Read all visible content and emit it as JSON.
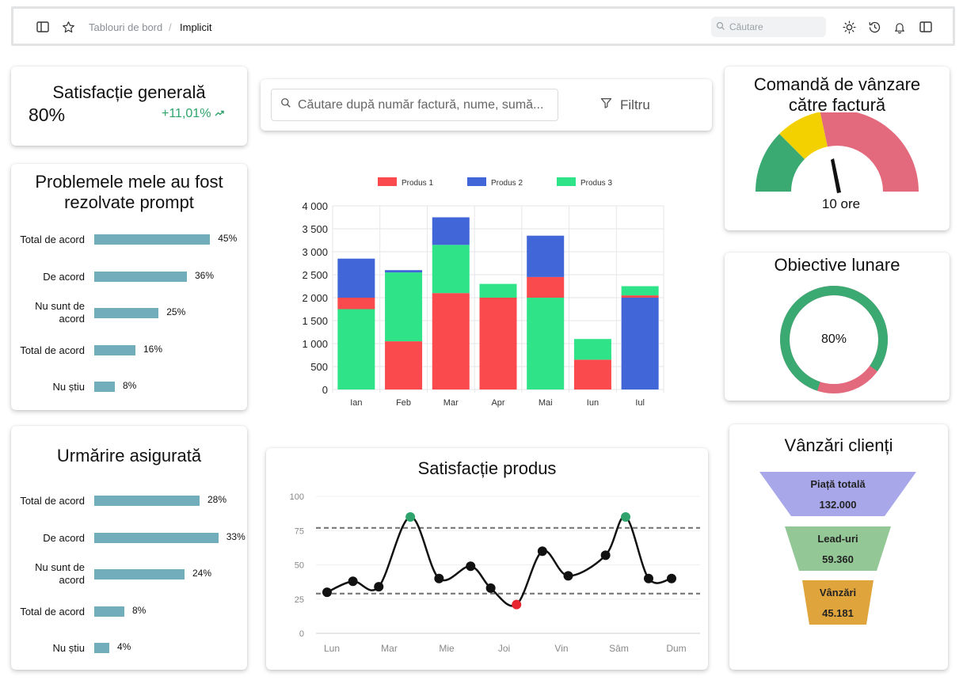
{
  "header": {
    "breadcrumb_parent": "Tablouri de bord",
    "breadcrumb_sep": "/",
    "breadcrumb_current": "Implicit",
    "search_placeholder": "Căutare"
  },
  "satisfaction": {
    "title": "Satisfacție generală",
    "value": "80%",
    "change": "+11,01%"
  },
  "resolved": {
    "title_line1": "Problemele mele au fost",
    "title_line2": "rezolvate prompt",
    "rows": [
      {
        "label": "Total de acord",
        "value": 45,
        "value_label": "45%"
      },
      {
        "label": "De acord",
        "value": 36,
        "value_label": "36%"
      },
      {
        "label_line1": "Nu sunt de",
        "label_line2": "acord",
        "value": 25,
        "value_label": "25%"
      },
      {
        "label": "Total de acord",
        "value": 16,
        "value_label": "16%"
      },
      {
        "label": "Nu știu",
        "value": 8,
        "value_label": "8%"
      }
    ]
  },
  "insurance": {
    "title": "Urmărire asigurată",
    "rows": [
      {
        "label": "Total de acord",
        "value": 28,
        "value_label": "28%"
      },
      {
        "label": "De acord",
        "value": 33,
        "value_label": "33%"
      },
      {
        "label_line1": "Nu sunt de",
        "label_line2": "acord",
        "value": 24,
        "value_label": "24%"
      },
      {
        "label": "Total de acord",
        "value": 8,
        "value_label": "8%"
      },
      {
        "label": "Nu știu",
        "value": 4,
        "value_label": "4%"
      }
    ]
  },
  "invoice_search": {
    "placeholder": "Căutare după număr factură, nume, sumă...",
    "filter_label": "Filtru"
  },
  "gauge": {
    "title_line1": "Comandă de vânzare",
    "title_line2": "către factură",
    "value_label": "10 ore",
    "colors": [
      "#3aaa72",
      "#f3d000",
      "#e36a7c"
    ]
  },
  "monthly": {
    "title": "Obiective lunare",
    "value": 80,
    "value_label": "80%",
    "colors": {
      "done": "#3aaa72",
      "rest": "#e36a7c"
    }
  },
  "funnel": {
    "title": "Vânzări clienți",
    "stages": [
      {
        "label": "Piață totală",
        "value": "132.000",
        "color": "#a8a7ea"
      },
      {
        "label": "Lead-uri",
        "value": "59.360",
        "color": "#93c795"
      },
      {
        "label": "Vânzări",
        "value": "45.181",
        "color": "#e0a43c"
      }
    ]
  },
  "product_line_title": "Satisfacție produs",
  "chart_data": [
    {
      "type": "bar",
      "stacked": true,
      "categories": [
        "Ian",
        "Feb",
        "Mar",
        "Apr",
        "Mai",
        "Iun",
        "Iul"
      ],
      "series": [
        {
          "name": "Produs 1",
          "color": "#fb4a4e",
          "values": [
            250,
            1050,
            2100,
            2000,
            450,
            650,
            50
          ]
        },
        {
          "name": "Produs 2",
          "color": "#4066d8",
          "values": [
            850,
            50,
            600,
            0,
            900,
            0,
            2000
          ]
        },
        {
          "name": "Produs 3",
          "color": "#2fe388",
          "values": [
            1750,
            1500,
            1050,
            300,
            2000,
            450,
            200
          ]
        }
      ],
      "stack_order": [
        [
          "Produs 3",
          "Produs 1",
          "Produs 2"
        ],
        [
          "Produs 1",
          "Produs 3",
          "Produs 2"
        ],
        [
          "Produs 1",
          "Produs 3",
          "Produs 2"
        ],
        [
          "Produs 1",
          "Produs 3"
        ],
        [
          "Produs 3",
          "Produs 1",
          "Produs 2"
        ],
        [
          "Produs 2",
          "Produs 1",
          "Produs 3"
        ],
        [
          "Produs 2",
          "Produs 1",
          "Produs 3"
        ]
      ],
      "yticks": [
        "0",
        "500",
        "1 000",
        "1 500",
        "2 000",
        "2 500",
        "3 000",
        "3 500",
        "4 000"
      ],
      "ylim": [
        0,
        4000
      ],
      "legend": "top"
    },
    {
      "type": "line",
      "title": "Satisfacție produs",
      "x": [
        "Lun",
        "Mar",
        "Mie",
        "Joi",
        "Vin",
        "Sâm",
        "Dum"
      ],
      "points_x": [
        0,
        0.45,
        0.9,
        1.45,
        1.95,
        2.5,
        2.85,
        3.3,
        3.75,
        4.2,
        4.85,
        5.2,
        5.6,
        6.0
      ],
      "points_y": [
        30,
        38,
        34,
        85,
        40,
        49,
        33,
        21,
        60,
        42,
        57,
        85,
        40,
        40
      ],
      "ylim": [
        0,
        100
      ],
      "yticks": [
        "0",
        "25",
        "50",
        "75",
        "100"
      ],
      "reference_lines": [
        29,
        77
      ],
      "point_colors": {
        "high": "#2ea46c",
        "low": "#e8262f",
        "normal": "#111111"
      }
    }
  ]
}
